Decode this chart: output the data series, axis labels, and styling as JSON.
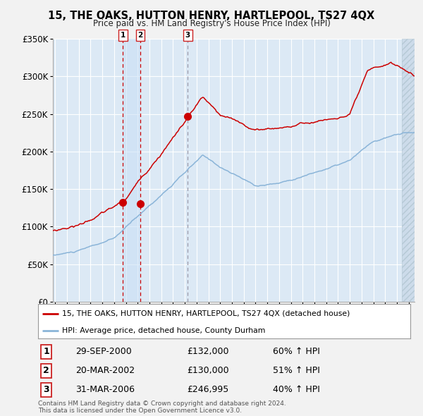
{
  "title": "15, THE OAKS, HUTTON HENRY, HARTLEPOOL, TS27 4QX",
  "subtitle": "Price paid vs. HM Land Registry's House Price Index (HPI)",
  "legend_line1": "15, THE OAKS, HUTTON HENRY, HARTLEPOOL, TS27 4QX (detached house)",
  "legend_line2": "HPI: Average price, detached house, County Durham",
  "footer1": "Contains HM Land Registry data © Crown copyright and database right 2024.",
  "footer2": "This data is licensed under the Open Government Licence v3.0.",
  "sales": [
    {
      "num": 1,
      "date": "29-SEP-2000",
      "price": 132000,
      "pct": "60% ↑ HPI"
    },
    {
      "num": 2,
      "date": "20-MAR-2002",
      "price": 130000,
      "pct": "51% ↑ HPI"
    },
    {
      "num": 3,
      "date": "31-MAR-2006",
      "price": 246995,
      "pct": "40% ↑ HPI"
    }
  ],
  "yticks": [
    0,
    50000,
    100000,
    150000,
    200000,
    250000,
    300000,
    350000
  ],
  "ytick_labels": [
    "£0",
    "£50K",
    "£100K",
    "£150K",
    "£200K",
    "£250K",
    "£300K",
    "£350K"
  ],
  "fig_bg": "#f2f2f2",
  "plot_bg": "#dce9f5",
  "grid_color": "white",
  "hpi_color": "#8ab4d8",
  "price_color": "#cc0000",
  "marker_color": "#cc0000",
  "sale1_date_num": 2000.75,
  "sale2_date_num": 2002.22,
  "sale3_date_num": 2006.25,
  "sale1_y": 132000,
  "sale2_y": 130000,
  "sale3_y": 246995,
  "xmin": 1994.8,
  "xmax": 2025.5
}
